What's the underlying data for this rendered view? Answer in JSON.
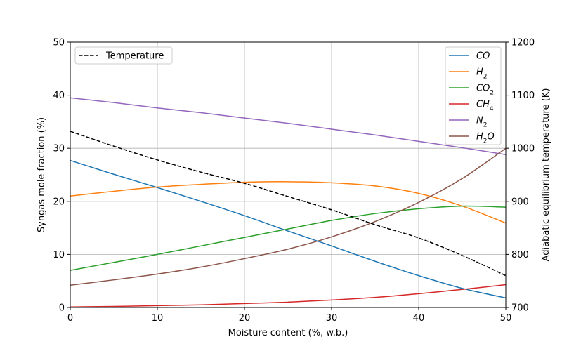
{
  "chart_data": {
    "type": "line",
    "xlabel": "Moisture content (%, w.b.)",
    "ylabel_left": "Syngas mole fraction (%)",
    "ylabel_right": "Adiabatic equilibrium temperature (K)",
    "xlim": [
      0,
      50
    ],
    "ylim_left": [
      0,
      50
    ],
    "ylim_right": [
      700,
      1200
    ],
    "xticks": [
      0,
      10,
      20,
      30,
      40,
      50
    ],
    "yticks_left": [
      0,
      10,
      20,
      30,
      40,
      50
    ],
    "yticks_right": [
      700,
      800,
      900,
      1000,
      1100,
      1200
    ],
    "grid": true,
    "x": [
      0,
      5,
      10,
      15,
      20,
      25,
      30,
      35,
      40,
      45,
      50
    ],
    "series": [
      {
        "name": "CO",
        "sub": "",
        "axis": "left",
        "color": "#1f77b4",
        "values": [
          27.7,
          25.1,
          22.6,
          20.0,
          17.3,
          14.4,
          11.6,
          8.7,
          6.0,
          3.6,
          1.8
        ]
      },
      {
        "name": "H",
        "sub": "2",
        "axis": "left",
        "color": "#ff7f0e",
        "values": [
          21.0,
          21.9,
          22.7,
          23.2,
          23.6,
          23.7,
          23.5,
          22.9,
          21.5,
          19.1,
          15.9
        ]
      },
      {
        "name": "CO",
        "sub": "2",
        "axis": "left",
        "color": "#2ca02c",
        "values": [
          7.0,
          8.5,
          10.0,
          11.6,
          13.2,
          14.8,
          16.4,
          17.7,
          18.6,
          19.1,
          18.9
        ]
      },
      {
        "name": "CH",
        "sub": "4",
        "axis": "left",
        "color": "#d62728",
        "values": [
          0.1,
          0.2,
          0.35,
          0.5,
          0.75,
          1.0,
          1.4,
          1.9,
          2.6,
          3.4,
          4.3
        ]
      },
      {
        "name": "N",
        "sub": "2",
        "axis": "left",
        "color": "#9467bd",
        "values": [
          39.5,
          38.6,
          37.6,
          36.7,
          35.7,
          34.7,
          33.6,
          32.5,
          31.3,
          30.1,
          28.8
        ]
      },
      {
        "name": "H",
        "sub": "2",
        "suffix": "O",
        "axis": "left",
        "color": "#8c564b",
        "values": [
          4.2,
          5.2,
          6.3,
          7.6,
          9.2,
          11.0,
          13.3,
          16.2,
          19.8,
          24.3,
          30.0
        ]
      }
    ],
    "temperature": {
      "name": "Temperature",
      "axis": "right",
      "color": "#000000",
      "style": "dashed",
      "values": [
        1032,
        1004,
        978,
        955,
        934,
        909,
        884,
        856,
        831,
        798,
        760
      ]
    },
    "legend_left_position": "upper-left",
    "legend_right_position": "upper-right"
  }
}
